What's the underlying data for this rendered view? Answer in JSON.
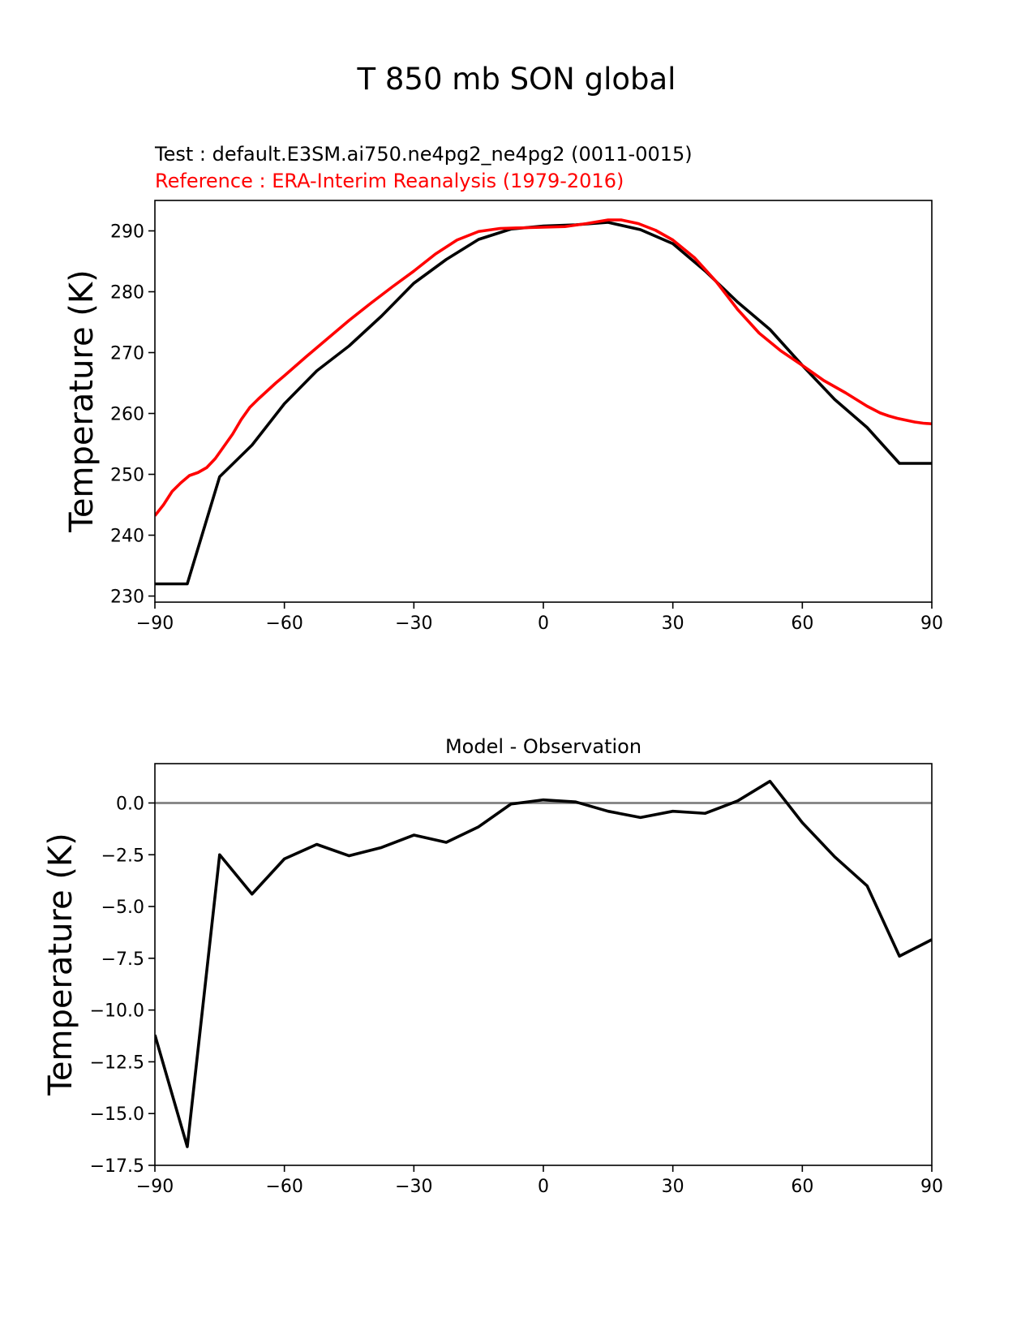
{
  "figure": {
    "title": "T 850 mb SON global"
  },
  "chart_data": [
    {
      "type": "line",
      "title_test": "Test : default.E3SM.ai750.ne4pg2_ne4pg2 (0011-0015)",
      "title_reference": "Reference : ERA-Interim Reanalysis (1979-2016)",
      "xlabel": "",
      "ylabel": "Temperature (K)",
      "xlim": [
        -90,
        90
      ],
      "ylim": [
        229,
        295
      ],
      "xticks": [
        -90,
        -60,
        -30,
        0,
        30,
        60,
        90
      ],
      "xtick_labels": [
        "−90",
        "−60",
        "−30",
        "0",
        "30",
        "60",
        "90"
      ],
      "yticks": [
        230,
        240,
        250,
        260,
        270,
        280,
        290
      ],
      "ytick_labels": [
        "230",
        "240",
        "250",
        "260",
        "270",
        "280",
        "290"
      ],
      "series": [
        {
          "name": "Test",
          "color": "#000000",
          "x": [
            -90,
            -82.5,
            -75,
            -67.5,
            -60,
            -52.5,
            -45,
            -37.5,
            -30,
            -22.5,
            -15,
            -7.5,
            0,
            7.5,
            15,
            22.5,
            30,
            37.5,
            45,
            52.5,
            60,
            67.5,
            75,
            82.5,
            90
          ],
          "y": [
            232.0,
            232.0,
            249.6,
            254.8,
            261.6,
            267.0,
            271.1,
            276.0,
            281.4,
            285.3,
            288.6,
            290.3,
            290.8,
            291.0,
            291.4,
            290.2,
            287.9,
            283.4,
            278.3,
            273.8,
            267.9,
            262.3,
            257.7,
            251.8,
            251.8
          ]
        },
        {
          "name": "Reference",
          "color": "#ff0000",
          "x": [
            -90,
            -88,
            -86,
            -84,
            -82,
            -80,
            -78,
            -76,
            -74,
            -72,
            -70,
            -68,
            -66,
            -64,
            -62,
            -60,
            -55,
            -50,
            -45,
            -40,
            -35,
            -30,
            -25,
            -20,
            -15,
            -10,
            -5,
            0,
            5,
            10,
            15,
            18,
            22,
            26,
            30,
            35,
            40,
            45,
            50,
            55,
            60,
            65,
            70,
            75,
            78,
            80,
            82,
            84,
            86,
            88,
            90
          ],
          "y": [
            243.2,
            245.0,
            247.2,
            248.6,
            249.8,
            250.3,
            251.1,
            252.6,
            254.6,
            256.6,
            259.0,
            261.0,
            262.4,
            263.7,
            265.0,
            266.2,
            269.3,
            272.3,
            275.3,
            278.1,
            280.8,
            283.4,
            286.2,
            288.5,
            289.9,
            290.4,
            290.5,
            290.6,
            290.7,
            291.2,
            291.8,
            291.8,
            291.2,
            290.1,
            288.5,
            285.6,
            281.7,
            277.1,
            273.2,
            270.3,
            267.9,
            265.4,
            263.4,
            261.2,
            260.1,
            259.6,
            259.2,
            258.9,
            258.6,
            258.4,
            258.3
          ]
        }
      ]
    },
    {
      "type": "line",
      "title": "Model - Observation",
      "xlabel": "",
      "ylabel": "Temperature (K)",
      "xlim": [
        -90,
        90
      ],
      "ylim": [
        -17.5,
        1.9
      ],
      "xticks": [
        -90,
        -60,
        -30,
        0,
        30,
        60,
        90
      ],
      "xtick_labels": [
        "−90",
        "−60",
        "−30",
        "0",
        "30",
        "60",
        "90"
      ],
      "yticks": [
        0,
        -2.5,
        -5,
        -7.5,
        -10,
        -12.5,
        -15,
        -17.5
      ],
      "ytick_labels": [
        "0.0",
        "−2.5",
        "−5.0",
        "−7.5",
        "−10.0",
        "−12.5",
        "−15.0",
        "−17.5"
      ],
      "zero_line_color": "#808080",
      "series": [
        {
          "name": "Model - Observation",
          "color": "#000000",
          "x": [
            -90,
            -82.5,
            -75,
            -67.5,
            -60,
            -52.5,
            -45,
            -37.5,
            -30,
            -22.5,
            -15,
            -7.5,
            0,
            7.5,
            15,
            22.5,
            30,
            37.5,
            45,
            52.5,
            60,
            67.5,
            75,
            82.5,
            90
          ],
          "y": [
            -11.2,
            -16.6,
            -2.5,
            -4.4,
            -2.7,
            -2.0,
            -2.55,
            -2.15,
            -1.55,
            -1.9,
            -1.15,
            -0.05,
            0.15,
            0.05,
            -0.4,
            -0.7,
            -0.4,
            -0.5,
            0.1,
            1.05,
            -0.95,
            -2.6,
            -4.0,
            -7.4,
            -6.6
          ]
        }
      ]
    }
  ]
}
